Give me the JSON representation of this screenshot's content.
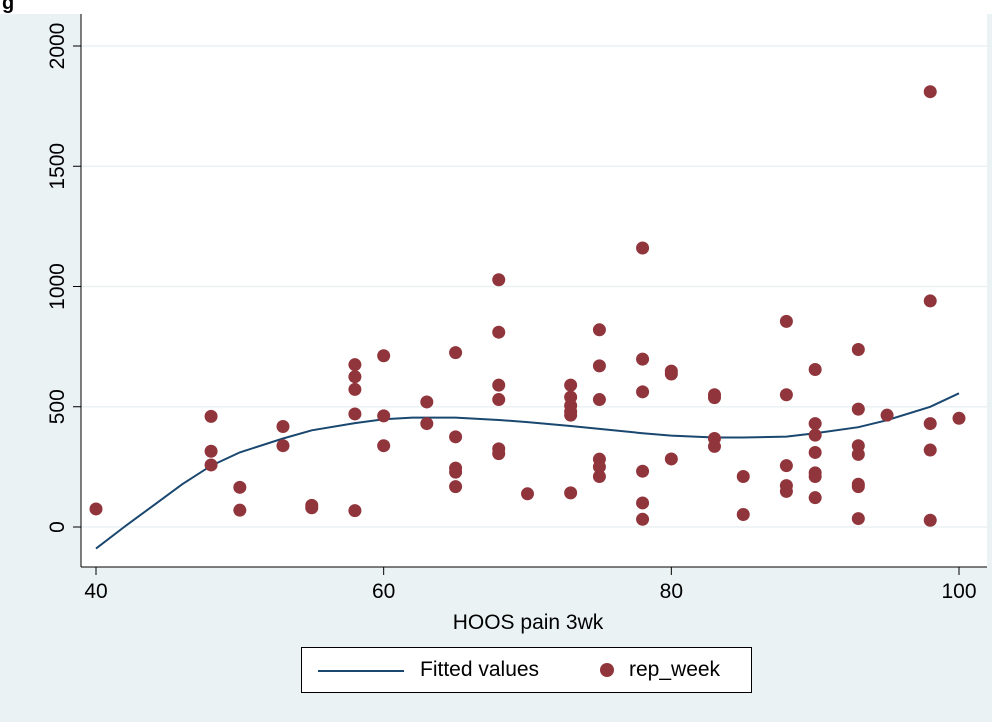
{
  "figure_label": "g",
  "chart_data": {
    "type": "scatter",
    "title": "",
    "xlabel": "HOOS pain 3wk",
    "ylabel": "",
    "xlim": [
      39,
      102
    ],
    "ylim": [
      -150,
      2100
    ],
    "xticks": [
      40,
      60,
      80,
      100
    ],
    "yticks": [
      0,
      500,
      1000,
      1500,
      2000
    ],
    "grid": "horizontal",
    "legend": "bottom-center",
    "colors": {
      "points": "#90353b",
      "fit": "#1a476f",
      "plot_bg": "#ffffff",
      "outer_bg": "#eaf2f3",
      "grid": "#eaf2f3"
    },
    "series": [
      {
        "name": "Fitted values",
        "type": "line",
        "x": [
          40,
          42,
          44,
          46,
          48,
          50,
          53,
          55,
          58,
          60,
          62,
          65,
          68,
          70,
          73,
          75,
          78,
          80,
          83,
          85,
          88,
          90,
          93,
          95,
          98,
          100
        ],
        "y": [
          -90,
          2,
          90,
          178,
          255,
          310,
          368,
          402,
          432,
          448,
          455,
          455,
          445,
          436,
          420,
          408,
          390,
          380,
          372,
          372,
          376,
          390,
          415,
          444,
          500,
          556
        ]
      },
      {
        "name": "rep_week",
        "type": "scatter",
        "points": [
          [
            40,
            75
          ],
          [
            48,
            460
          ],
          [
            48,
            315
          ],
          [
            48,
            258
          ],
          [
            50,
            165
          ],
          [
            50,
            70
          ],
          [
            53,
            418
          ],
          [
            53,
            338
          ],
          [
            55,
            90
          ],
          [
            55,
            80
          ],
          [
            58,
            675
          ],
          [
            58,
            625
          ],
          [
            58,
            572
          ],
          [
            58,
            470
          ],
          [
            58,
            68
          ],
          [
            60,
            712
          ],
          [
            60,
            462
          ],
          [
            60,
            338
          ],
          [
            63,
            520
          ],
          [
            63,
            430
          ],
          [
            65,
            725
          ],
          [
            65,
            375
          ],
          [
            65,
            245
          ],
          [
            65,
            228
          ],
          [
            65,
            168
          ],
          [
            68,
            1028
          ],
          [
            68,
            810
          ],
          [
            68,
            590
          ],
          [
            68,
            530
          ],
          [
            68,
            325
          ],
          [
            68,
            305
          ],
          [
            70,
            138
          ],
          [
            73,
            590
          ],
          [
            73,
            540
          ],
          [
            73,
            505
          ],
          [
            73,
            480
          ],
          [
            73,
            465
          ],
          [
            73,
            142
          ],
          [
            75,
            820
          ],
          [
            75,
            670
          ],
          [
            75,
            530
          ],
          [
            75,
            282
          ],
          [
            75,
            250
          ],
          [
            75,
            210
          ],
          [
            78,
            1160
          ],
          [
            78,
            698
          ],
          [
            78,
            562
          ],
          [
            78,
            232
          ],
          [
            78,
            100
          ],
          [
            78,
            32
          ],
          [
            80,
            648
          ],
          [
            80,
            636
          ],
          [
            80,
            283
          ],
          [
            83,
            550
          ],
          [
            83,
            538
          ],
          [
            83,
            368
          ],
          [
            83,
            335
          ],
          [
            85,
            210
          ],
          [
            85,
            52
          ],
          [
            88,
            855
          ],
          [
            88,
            550
          ],
          [
            88,
            255
          ],
          [
            88,
            172
          ],
          [
            88,
            148
          ],
          [
            90,
            655
          ],
          [
            90,
            430
          ],
          [
            90,
            382
          ],
          [
            90,
            310
          ],
          [
            90,
            225
          ],
          [
            90,
            210
          ],
          [
            90,
            122
          ],
          [
            93,
            738
          ],
          [
            93,
            490
          ],
          [
            93,
            338
          ],
          [
            93,
            302
          ],
          [
            93,
            178
          ],
          [
            93,
            168
          ],
          [
            93,
            35
          ],
          [
            95,
            465
          ],
          [
            98,
            1810
          ],
          [
            98,
            940
          ],
          [
            98,
            430
          ],
          [
            98,
            320
          ],
          [
            98,
            28
          ],
          [
            100,
            452
          ]
        ]
      }
    ]
  }
}
